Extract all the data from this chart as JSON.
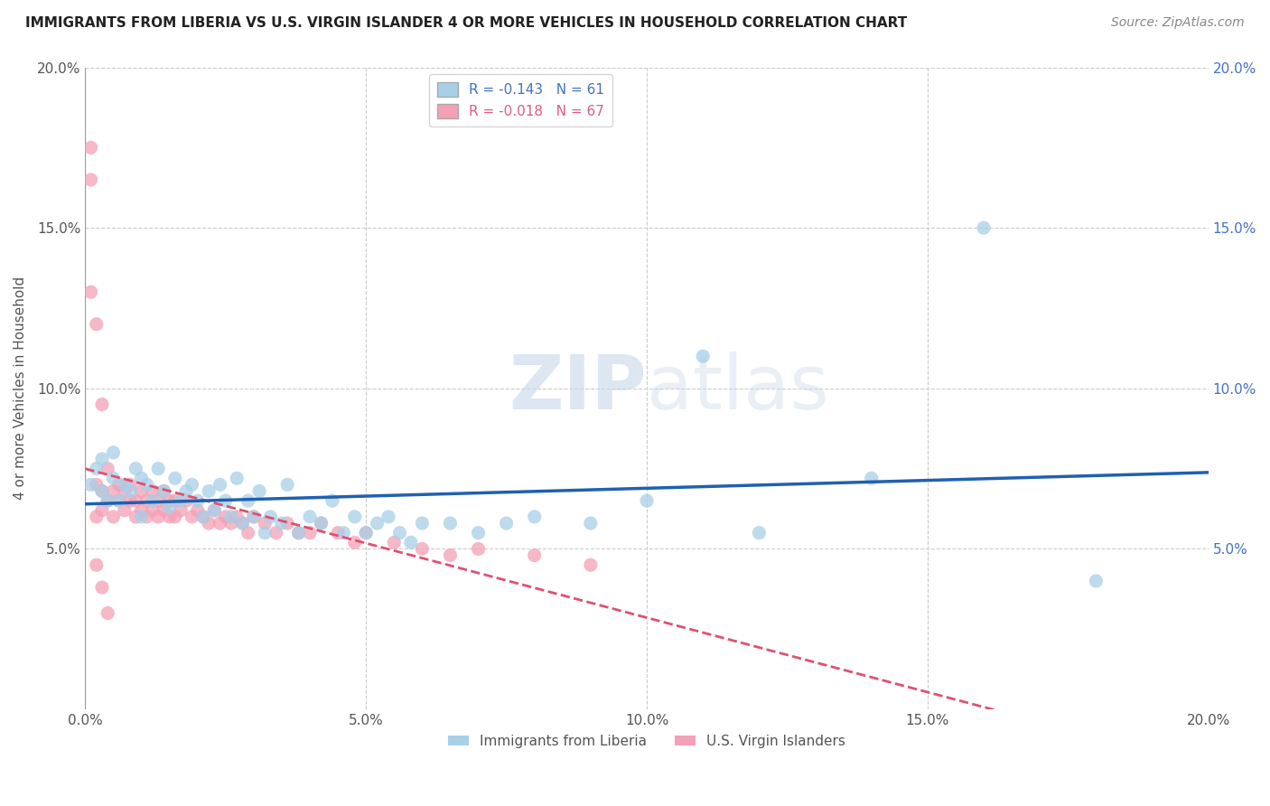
{
  "title": "IMMIGRANTS FROM LIBERIA VS U.S. VIRGIN ISLANDER 4 OR MORE VEHICLES IN HOUSEHOLD CORRELATION CHART",
  "source": "Source: ZipAtlas.com",
  "ylabel": "4 or more Vehicles in Household",
  "xlim": [
    0.0,
    0.2
  ],
  "ylim": [
    0.0,
    0.2
  ],
  "xtick_labels": [
    "0.0%",
    "5.0%",
    "10.0%",
    "15.0%",
    "20.0%"
  ],
  "xtick_vals": [
    0.0,
    0.05,
    0.1,
    0.15,
    0.2
  ],
  "ytick_labels": [
    "",
    "5.0%",
    "10.0%",
    "15.0%",
    "20.0%"
  ],
  "ytick_vals": [
    0.0,
    0.05,
    0.1,
    0.15,
    0.2
  ],
  "right_ytick_labels": [
    "5.0%",
    "10.0%",
    "15.0%",
    "20.0%"
  ],
  "right_ytick_vals": [
    0.05,
    0.1,
    0.15,
    0.2
  ],
  "blue_R": -0.143,
  "blue_N": 61,
  "pink_R": -0.018,
  "pink_N": 67,
  "blue_color": "#a8cfe8",
  "pink_color": "#f4a0b5",
  "blue_line_color": "#2060b0",
  "pink_line_color": "#e05070",
  "legend_label_blue": "Immigrants from Liberia",
  "legend_label_pink": "U.S. Virgin Islanders",
  "blue_scatter_x": [
    0.001,
    0.002,
    0.003,
    0.003,
    0.004,
    0.005,
    0.005,
    0.006,
    0.007,
    0.008,
    0.009,
    0.01,
    0.01,
    0.011,
    0.012,
    0.013,
    0.014,
    0.015,
    0.016,
    0.017,
    0.018,
    0.019,
    0.02,
    0.021,
    0.022,
    0.023,
    0.024,
    0.025,
    0.026,
    0.027,
    0.028,
    0.029,
    0.03,
    0.031,
    0.032,
    0.033,
    0.035,
    0.036,
    0.038,
    0.04,
    0.042,
    0.044,
    0.046,
    0.048,
    0.05,
    0.052,
    0.054,
    0.056,
    0.058,
    0.06,
    0.065,
    0.07,
    0.075,
    0.08,
    0.09,
    0.1,
    0.11,
    0.12,
    0.14,
    0.16,
    0.18
  ],
  "blue_scatter_y": [
    0.07,
    0.075,
    0.068,
    0.078,
    0.065,
    0.072,
    0.08,
    0.065,
    0.07,
    0.068,
    0.075,
    0.072,
    0.06,
    0.07,
    0.065,
    0.075,
    0.068,
    0.063,
    0.072,
    0.065,
    0.068,
    0.07,
    0.065,
    0.06,
    0.068,
    0.062,
    0.07,
    0.065,
    0.06,
    0.072,
    0.058,
    0.065,
    0.06,
    0.068,
    0.055,
    0.06,
    0.058,
    0.07,
    0.055,
    0.06,
    0.058,
    0.065,
    0.055,
    0.06,
    0.055,
    0.058,
    0.06,
    0.055,
    0.052,
    0.058,
    0.058,
    0.055,
    0.058,
    0.06,
    0.058,
    0.065,
    0.11,
    0.055,
    0.072,
    0.15,
    0.04
  ],
  "pink_scatter_x": [
    0.001,
    0.001,
    0.002,
    0.002,
    0.003,
    0.003,
    0.004,
    0.004,
    0.005,
    0.005,
    0.006,
    0.006,
    0.007,
    0.007,
    0.008,
    0.008,
    0.009,
    0.009,
    0.01,
    0.01,
    0.011,
    0.011,
    0.012,
    0.012,
    0.013,
    0.013,
    0.014,
    0.014,
    0.015,
    0.015,
    0.016,
    0.016,
    0.017,
    0.018,
    0.019,
    0.02,
    0.021,
    0.022,
    0.023,
    0.024,
    0.025,
    0.026,
    0.027,
    0.028,
    0.029,
    0.03,
    0.032,
    0.034,
    0.036,
    0.038,
    0.04,
    0.042,
    0.045,
    0.048,
    0.05,
    0.055,
    0.06,
    0.065,
    0.07,
    0.08,
    0.09,
    0.001,
    0.002,
    0.003,
    0.002,
    0.003,
    0.004
  ],
  "pink_scatter_y": [
    0.175,
    0.165,
    0.07,
    0.06,
    0.068,
    0.062,
    0.065,
    0.075,
    0.068,
    0.06,
    0.07,
    0.065,
    0.068,
    0.062,
    0.07,
    0.065,
    0.065,
    0.06,
    0.068,
    0.062,
    0.065,
    0.06,
    0.068,
    0.062,
    0.065,
    0.06,
    0.068,
    0.062,
    0.065,
    0.06,
    0.065,
    0.06,
    0.062,
    0.065,
    0.06,
    0.062,
    0.06,
    0.058,
    0.062,
    0.058,
    0.06,
    0.058,
    0.06,
    0.058,
    0.055,
    0.06,
    0.058,
    0.055,
    0.058,
    0.055,
    0.055,
    0.058,
    0.055,
    0.052,
    0.055,
    0.052,
    0.05,
    0.048,
    0.05,
    0.048,
    0.045,
    0.13,
    0.12,
    0.095,
    0.045,
    0.038,
    0.03
  ]
}
